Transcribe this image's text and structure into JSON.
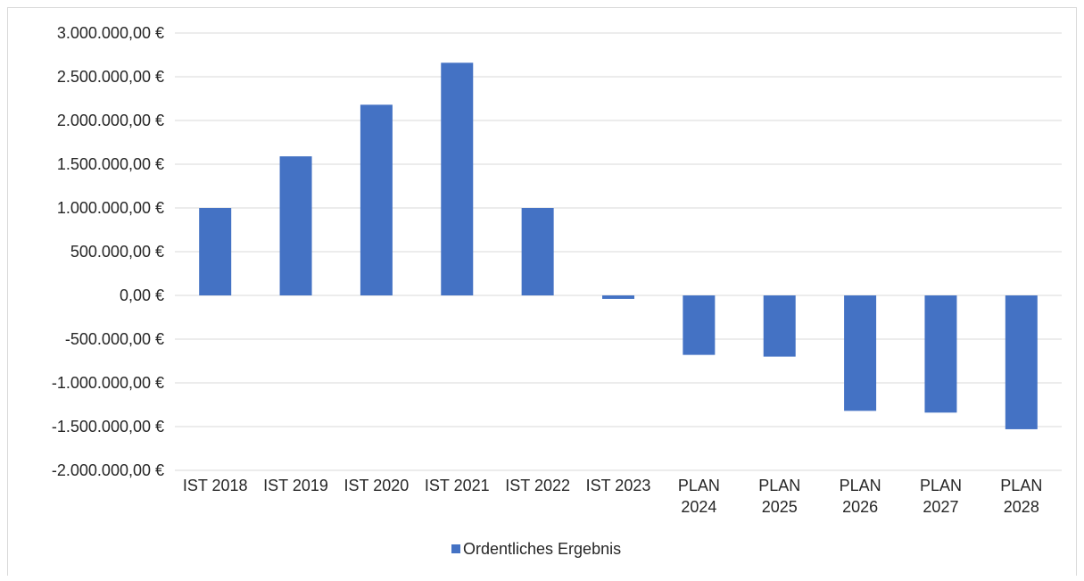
{
  "chart_data": {
    "type": "bar",
    "categories": [
      [
        "IST 2018"
      ],
      [
        "IST 2019"
      ],
      [
        "IST 2020"
      ],
      [
        "IST 2021"
      ],
      [
        "IST 2022"
      ],
      [
        "IST 2023"
      ],
      [
        "PLAN",
        "2024"
      ],
      [
        "PLAN",
        "2025"
      ],
      [
        "PLAN",
        "2026"
      ],
      [
        "PLAN",
        "2027"
      ],
      [
        "PLAN",
        "2028"
      ]
    ],
    "series": [
      {
        "name": "Ordentliches Ergebnis",
        "color": "#4472c4",
        "values": [
          1000000,
          1590000,
          2180000,
          2660000,
          1000000,
          -40000,
          -680000,
          -700000,
          -1320000,
          -1340000,
          -1530000
        ]
      }
    ],
    "ylim": [
      -2000000,
      3000000
    ],
    "yticks": [
      {
        "value": 3000000,
        "label": "3.000.000,00 €"
      },
      {
        "value": 2500000,
        "label": "2.500.000,00 €"
      },
      {
        "value": 2000000,
        "label": "2.000.000,00 €"
      },
      {
        "value": 1500000,
        "label": "1.500.000,00 €"
      },
      {
        "value": 1000000,
        "label": "1.000.000,00 €"
      },
      {
        "value": 500000,
        "label": "500.000,00 €"
      },
      {
        "value": 0,
        "label": "0,00 €"
      },
      {
        "value": -500000,
        "label": "-500.000,00 €"
      },
      {
        "value": -1000000,
        "label": "-1.000.000,00 €"
      },
      {
        "value": -1500000,
        "label": "-1.500.000,00 €"
      },
      {
        "value": -2000000,
        "label": "-2.000.000,00 €"
      }
    ],
    "grid": true,
    "legend_position": "bottom",
    "gridline_color": "#d9d9d9",
    "text_color": "#262626"
  }
}
